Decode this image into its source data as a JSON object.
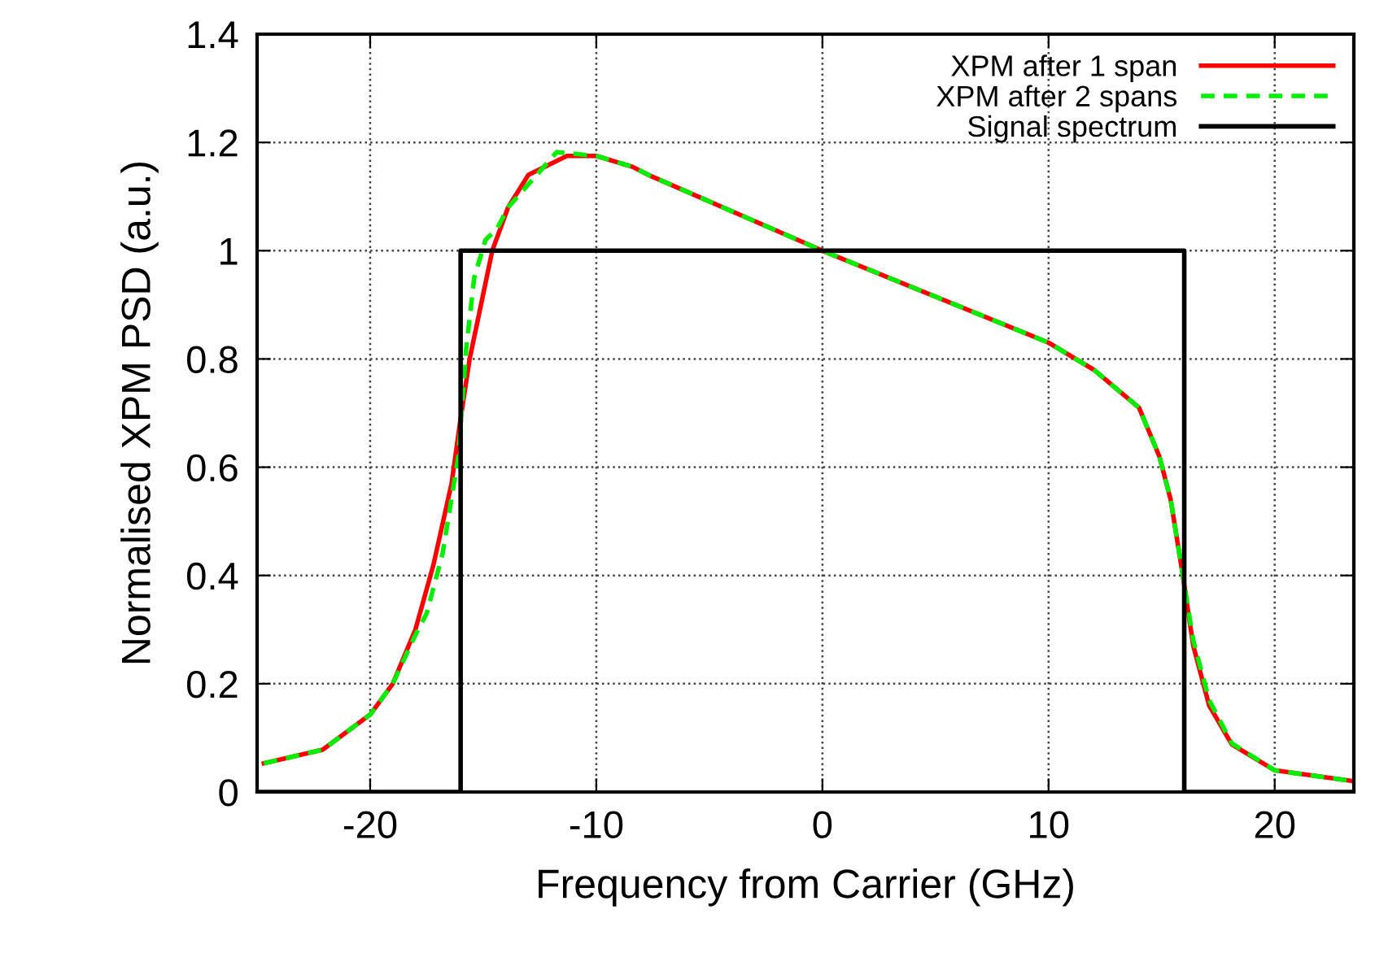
{
  "chart_data": {
    "type": "line",
    "xlabel": "Frequency from Carrier (GHz)",
    "ylabel": "Normalised XPM PSD (a.u.)",
    "xlim": [
      -25,
      23.5
    ],
    "ylim": [
      0,
      1.4
    ],
    "xticks": [
      -20,
      -10,
      0,
      10,
      20
    ],
    "yticks": [
      0,
      0.2,
      0.4,
      0.6,
      0.8,
      1,
      1.2,
      1.4
    ],
    "grid": true,
    "legend": "top right",
    "series": [
      {
        "name": "XPM after 1 span",
        "color": "#ff0000",
        "line_style": "solid",
        "x": [
          -24.7,
          -22.1,
          -20,
          -19,
          -18,
          -17.2,
          -16.4,
          -16,
          -15.6,
          -15.1,
          -14.6,
          -13.9,
          -13,
          -11.3,
          -10,
          -8.4,
          -7.7,
          0,
          10,
          12,
          14,
          14.9,
          15.4,
          15.9,
          16.4,
          17.1,
          18.1,
          20,
          23.5
        ],
        "values": [
          0.053,
          0.078,
          0.143,
          0.2,
          0.3,
          0.42,
          0.57,
          0.69,
          0.8,
          0.9,
          1.0,
          1.08,
          1.14,
          1.175,
          1.175,
          1.155,
          1.14,
          1.0,
          0.83,
          0.78,
          0.71,
          0.62,
          0.54,
          0.41,
          0.27,
          0.16,
          0.088,
          0.04,
          0.02
        ]
      },
      {
        "name": "XPM after 2 spans",
        "color": "#00ee00",
        "line_style": "dashed",
        "x": [
          -24.7,
          -22.1,
          -20,
          -19,
          -18,
          -17.5,
          -16.8,
          -16.1,
          -15.75,
          -15.4,
          -14.9,
          -14.4,
          -13.9,
          -11.75,
          -10,
          -8.4,
          -7.7,
          0,
          10,
          12,
          14,
          14.9,
          15.4,
          15.9,
          16.4,
          17.1,
          18.1,
          20,
          23.5
        ],
        "values": [
          0.053,
          0.078,
          0.143,
          0.2,
          0.29,
          0.33,
          0.44,
          0.62,
          0.82,
          0.95,
          1.02,
          1.04,
          1.08,
          1.182,
          1.175,
          1.155,
          1.14,
          1.0,
          0.83,
          0.78,
          0.71,
          0.62,
          0.54,
          0.41,
          0.28,
          0.17,
          0.09,
          0.04,
          0.02
        ]
      },
      {
        "name": "Signal spectrum",
        "color": "#000000",
        "line_style": "solid",
        "x": [
          -25,
          -16,
          -16,
          16,
          16,
          23.5
        ],
        "values": [
          0,
          0,
          1,
          1,
          0,
          0
        ]
      }
    ]
  }
}
